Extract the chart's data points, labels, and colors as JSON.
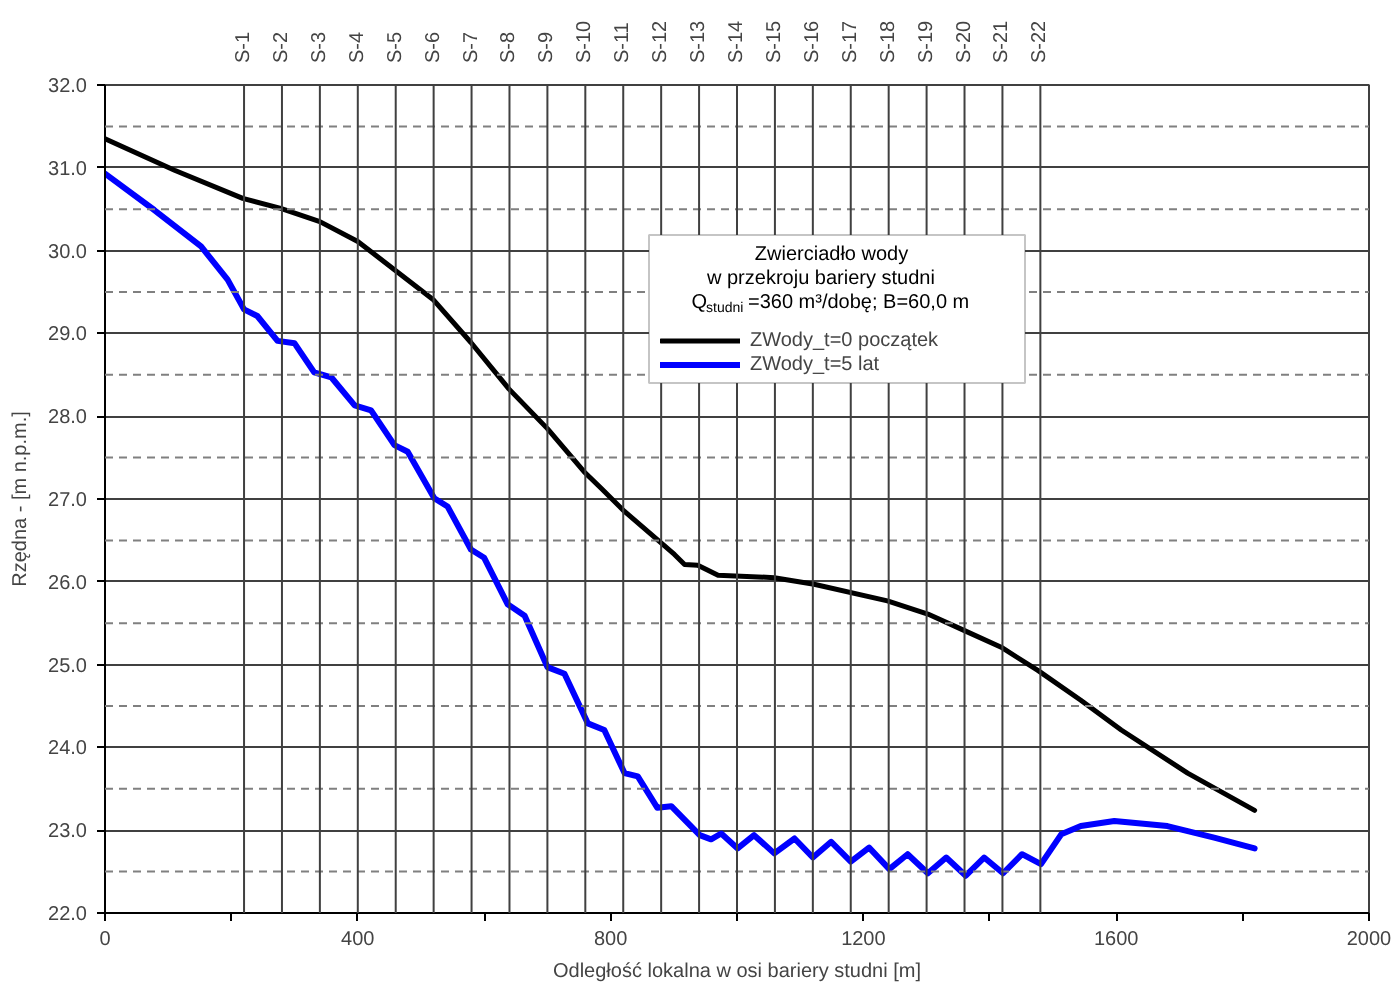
{
  "chart_data": {
    "type": "line",
    "xlabel": "Odległość lokalna w osi bariery studni [m]",
    "ylabel": "Rzędna - [m n.p.m.]",
    "legend_title": "Zwierciadło wody\nw przekroju bariery studni\nQ$_{studni}$=360 m³/dobę;  B=60,0 m",
    "legend": "top",
    "grid": "y",
    "xlim": [
      0,
      2000
    ],
    "ylim": [
      22,
      32
    ],
    "xticks": [
      0,
      {
        "value": 200,
        "label": null
      },
      400,
      {
        "value": 600,
        "label": null
      },
      800,
      {
        "value": 1000,
        "label": null
      },
      1200,
      {
        "value": 1400,
        "label": null
      },
      1600,
      {
        "value": 1800,
        "label": null
      },
      2000
    ],
    "yticks": [
      {
        "value": 22,
        "label": "22.0"
      },
      {
        "value": 23,
        "label": "23.0"
      },
      {
        "value": 24,
        "label": "24.0"
      },
      {
        "value": 25,
        "label": "25.0"
      },
      {
        "value": 26,
        "label": "26.0"
      },
      {
        "value": 27,
        "label": "27.0"
      },
      {
        "value": 28,
        "label": "28.0"
      },
      {
        "value": 29,
        "label": "29.0"
      },
      {
        "value": 30,
        "label": "30.0"
      },
      {
        "value": 31,
        "label": "31.0"
      },
      {
        "value": 32,
        "label": "32.0"
      }
    ],
    "series": [
      {
        "name": "ZWody_t=0 początek",
        "color": "#000000",
        "x": [
          0,
          110,
          218,
          278,
          340,
          400,
          458,
          519,
          579,
          639,
          700,
          758,
          785,
          822,
          901,
          917,
          938,
          970,
          1059,
          1122,
          1238,
          1302,
          1360,
          1418,
          1476,
          1544,
          1608,
          1713,
          1819
        ],
        "values": [
          31.35,
          30.97,
          30.63,
          30.51,
          30.35,
          30.11,
          29.77,
          29.41,
          28.89,
          28.33,
          27.85,
          27.33,
          27.13,
          26.85,
          26.33,
          26.21,
          26.2,
          26.08,
          26.05,
          25.97,
          25.77,
          25.61,
          25.41,
          25.21,
          24.93,
          24.57,
          24.21,
          23.69,
          23.24
        ]
      },
      {
        "name": "ZWody_t=5 lat",
        "color": "#0000ff",
        "x": [
          0,
          78,
          152,
          194,
          220,
          241,
          273,
          300,
          331,
          358,
          395,
          421,
          458,
          479,
          521,
          542,
          579,
          600,
          637,
          664,
          700,
          727,
          764,
          790,
          822,
          843,
          874,
          896,
          941,
          959,
          975,
          1001,
          1027,
          1059,
          1091,
          1120,
          1149,
          1180,
          1209,
          1241,
          1270,
          1302,
          1331,
          1362,
          1391,
          1421,
          1451,
          1481,
          1513,
          1544,
          1597,
          1681,
          1755,
          1819
        ],
        "values": [
          30.93,
          30.49,
          30.05,
          29.65,
          29.29,
          29.21,
          28.91,
          28.88,
          28.53,
          28.47,
          28.13,
          28.07,
          27.65,
          27.57,
          27.01,
          26.91,
          26.39,
          26.29,
          25.73,
          25.59,
          24.97,
          24.89,
          24.29,
          24.21,
          23.69,
          23.65,
          23.27,
          23.29,
          22.94,
          22.89,
          22.96,
          22.78,
          22.94,
          22.72,
          22.9,
          22.67,
          22.86,
          22.62,
          22.79,
          22.53,
          22.71,
          22.48,
          22.67,
          22.45,
          22.67,
          22.48,
          22.71,
          22.59,
          22.95,
          23.05,
          23.11,
          23.05,
          22.91,
          22.78
        ]
      }
    ],
    "ref_lines": [
      {
        "axis": "y",
        "value": 22.5,
        "line_style": "dashed",
        "color": "#808080"
      },
      {
        "axis": "y",
        "value": 23.5,
        "line_style": "dashed",
        "color": "#808080"
      },
      {
        "axis": "y",
        "value": 24.5,
        "line_style": "dashed",
        "color": "#808080"
      },
      {
        "axis": "y",
        "value": 25.5,
        "line_style": "dashed",
        "color": "#808080"
      },
      {
        "axis": "y",
        "value": 26.5,
        "line_style": "dashed",
        "color": "#808080"
      },
      {
        "axis": "y",
        "value": 27.5,
        "line_style": "dashed",
        "color": "#808080"
      },
      {
        "axis": "y",
        "value": 28.5,
        "line_style": "dashed",
        "color": "#808080"
      },
      {
        "axis": "y",
        "value": 29.5,
        "line_style": "dashed",
        "color": "#808080"
      },
      {
        "axis": "y",
        "value": 30.5,
        "line_style": "dashed",
        "color": "#808080"
      },
      {
        "axis": "y",
        "value": 31.5,
        "line_style": "dashed",
        "color": "#808080"
      },
      {
        "axis": "x",
        "value": 220,
        "label": "S-1",
        "color": "#404040"
      },
      {
        "axis": "x",
        "value": 280,
        "label": "S-2",
        "color": "#404040"
      },
      {
        "axis": "x",
        "value": 340,
        "label": "S-3",
        "color": "#404040"
      },
      {
        "axis": "x",
        "value": 400,
        "label": "S-4",
        "color": "#404040"
      },
      {
        "axis": "x",
        "value": 460,
        "label": "S-5",
        "color": "#404040"
      },
      {
        "axis": "x",
        "value": 520,
        "label": "S-6",
        "color": "#404040"
      },
      {
        "axis": "x",
        "value": 580,
        "label": "S-7",
        "color": "#404040"
      },
      {
        "axis": "x",
        "value": 640,
        "label": "S-8",
        "color": "#404040"
      },
      {
        "axis": "x",
        "value": 700,
        "label": "S-9",
        "color": "#404040"
      },
      {
        "axis": "x",
        "value": 760,
        "label": "S-10",
        "color": "#404040"
      },
      {
        "axis": "x",
        "value": 820,
        "label": "S-11",
        "color": "#404040"
      },
      {
        "axis": "x",
        "value": 880,
        "label": "S-12",
        "color": "#404040"
      },
      {
        "axis": "x",
        "value": 940,
        "label": "S-13",
        "color": "#404040"
      },
      {
        "axis": "x",
        "value": 1000,
        "label": "S-14",
        "color": "#404040"
      },
      {
        "axis": "x",
        "value": 1060,
        "label": "S-15",
        "color": "#404040"
      },
      {
        "axis": "x",
        "value": 1120,
        "label": "S-16",
        "color": "#404040"
      },
      {
        "axis": "x",
        "value": 1180,
        "label": "S-17",
        "color": "#404040"
      },
      {
        "axis": "x",
        "value": 1240,
        "label": "S-18",
        "color": "#404040"
      },
      {
        "axis": "x",
        "value": 1300,
        "label": "S-19",
        "color": "#404040"
      },
      {
        "axis": "x",
        "value": 1360,
        "label": "S-20",
        "color": "#404040"
      },
      {
        "axis": "x",
        "value": 1420,
        "label": "S-21",
        "color": "#404040"
      },
      {
        "axis": "x",
        "value": 1480,
        "label": "S-22",
        "color": "#404040"
      }
    ]
  }
}
